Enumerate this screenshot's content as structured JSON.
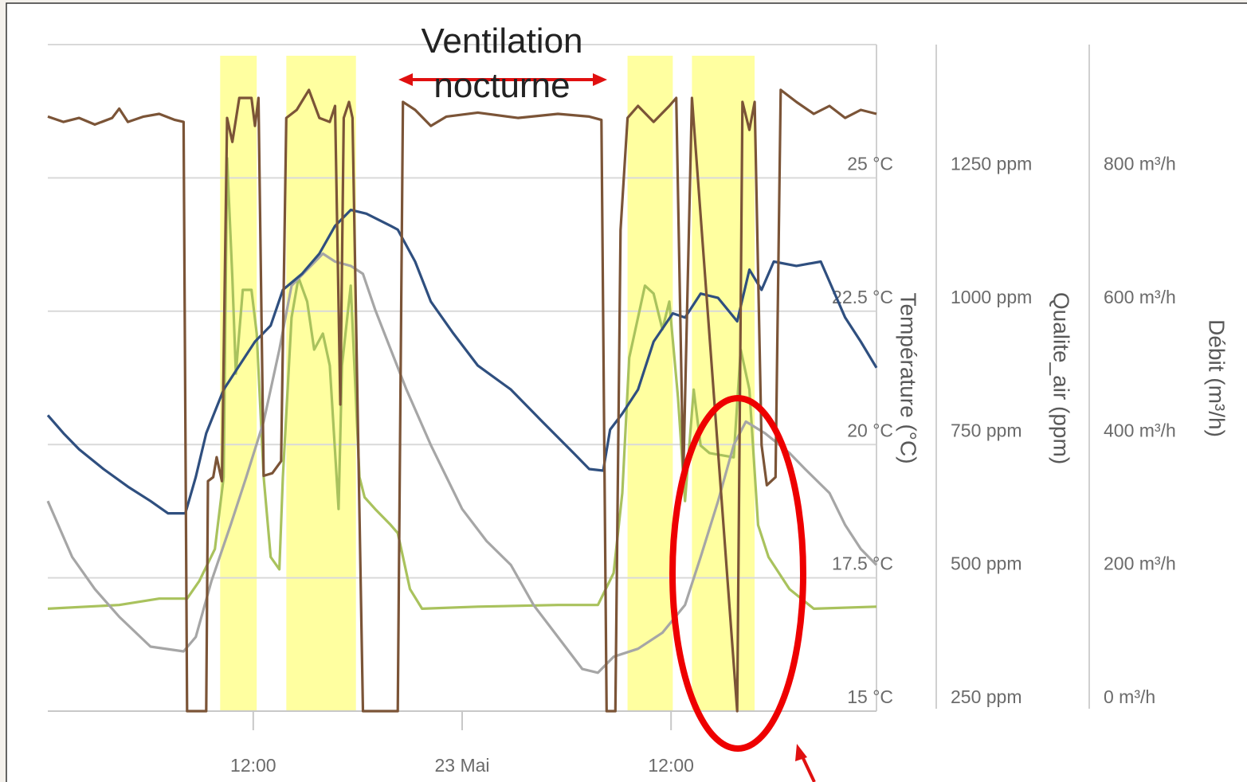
{
  "chart_data": {
    "type": "line",
    "annotation": "Ventilation nocturne",
    "ylabel": "Température (°C)",
    "y2label": "Qualite_air (ppm)",
    "y3label": "Débit (m³/h)",
    "xlim": [
      0.2,
      47.8
    ],
    "xticks": [
      {
        "value": 12,
        "label": "12:00"
      },
      {
        "value": 24,
        "label": "23 Mai"
      },
      {
        "value": 36,
        "label": "12:00"
      }
    ],
    "ylim": [
      15,
      27.5
    ],
    "yticks": [
      {
        "value": 15,
        "label": "15 °C"
      },
      {
        "value": 17.5,
        "label": "17.5 °C"
      },
      {
        "value": 20,
        "label": "20 °C"
      },
      {
        "value": 22.5,
        "label": "22.5 °C"
      },
      {
        "value": 25,
        "label": "25 °C"
      }
    ],
    "y2lim": [
      250,
      1500
    ],
    "y2ticks": [
      {
        "value": 250,
        "label": "250 ppm"
      },
      {
        "value": 500,
        "label": "500 ppm"
      },
      {
        "value": 750,
        "label": "750 ppm"
      },
      {
        "value": 1000,
        "label": "1000 ppm"
      },
      {
        "value": 1250,
        "label": "1250 ppm"
      }
    ],
    "y3lim": [
      0,
      1000
    ],
    "y3ticks": [
      {
        "value": 0,
        "label": "0 m³/h"
      },
      {
        "value": 200,
        "label": "200 m³/h"
      },
      {
        "value": 400,
        "label": "400 m³/h"
      },
      {
        "value": 600,
        "label": "600 m³/h"
      },
      {
        "value": 800,
        "label": "800 m³/h"
      }
    ],
    "grid": true,
    "highlight_color": "#ffffa0",
    "highlights": [
      [
        10.1,
        12.2
      ],
      [
        13.9,
        17.9
      ],
      [
        33.5,
        36.1
      ],
      [
        37.2,
        40.8
      ]
    ],
    "series": [
      {
        "color": "#a9c25d",
        "axis": "y2",
        "x": [
          0.2,
          4.3,
          6.6,
          8.2,
          8.9,
          9.8,
          10.3,
          10.5,
          10.8,
          11.0,
          11.4,
          11.9,
          12.2,
          12.6,
          13.0,
          13.5,
          13.7,
          14.2,
          14.6,
          15.1,
          15.5,
          16.0,
          16.4,
          16.9,
          17.1,
          17.6,
          18.1,
          18.4,
          19.0,
          19.9,
          20.3,
          21.0,
          21.7,
          24.9,
          29.5,
          31.8,
          32.7,
          33.2,
          33.6,
          34.1,
          34.5,
          35.0,
          35.5,
          35.9,
          36.4,
          36.8,
          37.3,
          37.7,
          38.2,
          39.6,
          40.0,
          40.5,
          41.0,
          41.6,
          42.8,
          44.2,
          47.8
        ],
        "values": [
          442,
          449,
          461,
          461,
          494,
          554,
          689,
          1287,
          1063,
          883,
          1040,
          1040,
          958,
          689,
          539,
          516,
          689,
          988,
          1063,
          1018,
          928,
          958,
          898,
          629,
          898,
          1048,
          689,
          651,
          629,
          599,
          584,
          479,
          442,
          446,
          449,
          449,
          509,
          659,
          913,
          988,
          1048,
          1033,
          966,
          1018,
          838,
          644,
          853,
          748,
          734,
          726,
          928,
          853,
          599,
          539,
          479,
          442,
          446
        ]
      },
      {
        "color": "#a6a6a6",
        "axis": "y",
        "x": [
          0.2,
          1.6,
          2.9,
          4.3,
          6.1,
          8.0,
          8.7,
          9.6,
          10.7,
          11.6,
          12.6,
          13.5,
          14.2,
          15.1,
          16.0,
          16.7,
          17.6,
          18.3,
          19.0,
          19.9,
          20.8,
          22.2,
          23.1,
          24.0,
          25.4,
          26.8,
          28.1,
          29.5,
          30.9,
          31.8,
          32.7,
          34.1,
          35.5,
          36.8,
          37.7,
          38.7,
          39.6,
          40.3,
          41.4,
          42.8,
          43.7,
          45.1,
          46.0,
          46.9,
          47.8
        ],
        "values": [
          18.94,
          17.89,
          17.29,
          16.77,
          16.21,
          16.12,
          16.39,
          17.44,
          18.49,
          19.39,
          20.43,
          21.78,
          22.98,
          23.28,
          23.58,
          23.43,
          23.35,
          23.2,
          22.53,
          21.78,
          21.03,
          19.99,
          19.39,
          18.79,
          18.19,
          17.74,
          16.99,
          16.39,
          15.79,
          15.72,
          16.02,
          16.17,
          16.47,
          16.99,
          17.89,
          18.94,
          19.99,
          20.43,
          20.21,
          19.84,
          19.54,
          19.09,
          18.49,
          18.04,
          17.74
        ]
      },
      {
        "color": "#2f4f7f",
        "axis": "y",
        "x": [
          0.2,
          1.1,
          2.0,
          3.4,
          4.8,
          6.1,
          7.1,
          8.1,
          8.7,
          9.3,
          10.3,
          11.2,
          12.1,
          13.0,
          13.7,
          14.8,
          15.8,
          16.7,
          17.6,
          18.5,
          19.9,
          20.3,
          21.3,
          22.2,
          23.5,
          24.9,
          26.8,
          28.6,
          30.4,
          31.3,
          32.1,
          32.5,
          33.2,
          34.1,
          35.0,
          36.1,
          36.8,
          37.7,
          38.7,
          39.8,
          40.5,
          41.2,
          41.9,
          43.2,
          44.6,
          46.0,
          46.9,
          47.8
        ],
        "values": [
          20.55,
          20.21,
          19.91,
          19.54,
          19.21,
          18.94,
          18.71,
          18.71,
          19.39,
          20.21,
          21.03,
          21.48,
          21.93,
          22.23,
          22.9,
          23.2,
          23.58,
          24.1,
          24.4,
          24.33,
          24.1,
          24.03,
          23.43,
          22.68,
          22.08,
          21.48,
          21.03,
          20.43,
          19.84,
          19.54,
          19.51,
          20.28,
          20.58,
          21.03,
          21.93,
          22.46,
          22.38,
          22.83,
          22.75,
          22.31,
          23.28,
          22.9,
          23.43,
          23.35,
          23.43,
          22.38,
          21.93,
          21.44
        ]
      },
      {
        "color": "#7b5437",
        "axis": "y3",
        "x": [
          0.2,
          1.1,
          2.0,
          2.9,
          3.9,
          4.3,
          4.8,
          5.7,
          6.6,
          7.5,
          8.0,
          8.2,
          9.3,
          9.4,
          9.7,
          9.9,
          10.2,
          10.5,
          10.8,
          11.2,
          11.9,
          12.1,
          12.3,
          12.6,
          13.1,
          13.6,
          13.9,
          14.5,
          15.2,
          15.8,
          16.4,
          16.7,
          17.0,
          17.2,
          17.5,
          17.7,
          18.3,
          20.3,
          20.6,
          21.3,
          22.2,
          23.1,
          24.9,
          27.2,
          29.5,
          31.3,
          32.0,
          32.3,
          32.8,
          33.1,
          33.5,
          34.1,
          35.0,
          35.9,
          36.3,
          36.7,
          37.2,
          39.8,
          40.1,
          40.5,
          40.8,
          41.2,
          41.5,
          42.0,
          42.3,
          43.2,
          44.2,
          45.1,
          46.0,
          46.9,
          47.8
        ],
        "values": [
          892,
          884,
          890,
          880,
          890,
          904,
          884,
          892,
          896,
          887,
          884,
          0,
          0,
          345,
          351,
          381,
          345,
          890,
          854,
          920,
          920,
          878,
          920,
          353,
          357,
          375,
          890,
          902,
          932,
          890,
          884,
          908,
          460,
          890,
          914,
          890,
          0,
          0,
          914,
          902,
          878,
          892,
          898,
          890,
          896,
          892,
          887,
          0,
          0,
          722,
          890,
          908,
          884,
          908,
          920,
          351,
          920,
          0,
          914,
          872,
          914,
          399,
          339,
          351,
          932,
          914,
          896,
          908,
          890,
          902,
          896
        ]
      }
    ]
  }
}
